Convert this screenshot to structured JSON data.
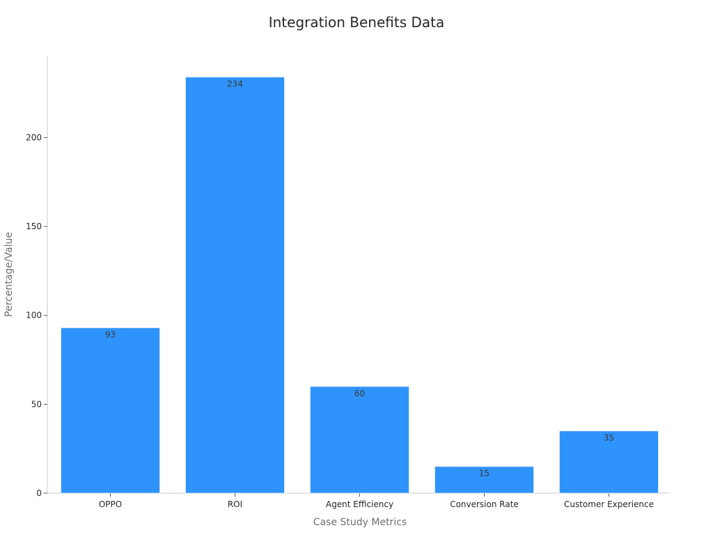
{
  "chart_data": {
    "type": "bar",
    "title": "Integration Benefits Data",
    "xlabel": "Case Study Metrics",
    "ylabel": "Percentage/Value",
    "categories": [
      "OPPO",
      "ROI",
      "Agent Efficiency",
      "Conversion Rate",
      "Customer Experience"
    ],
    "values": [
      93,
      234,
      60,
      15,
      35
    ],
    "ylim": [
      0,
      246
    ],
    "yticks": [
      0,
      50,
      100,
      150,
      200
    ],
    "grid": false,
    "legend": "none",
    "data_labels": true,
    "colors": {
      "bar_fill": "#2e93fa",
      "bar_edge": "#d6e6fb",
      "axis": "#cccccc",
      "tick_text": "#262626",
      "label_text": "#3a3a3a"
    }
  }
}
